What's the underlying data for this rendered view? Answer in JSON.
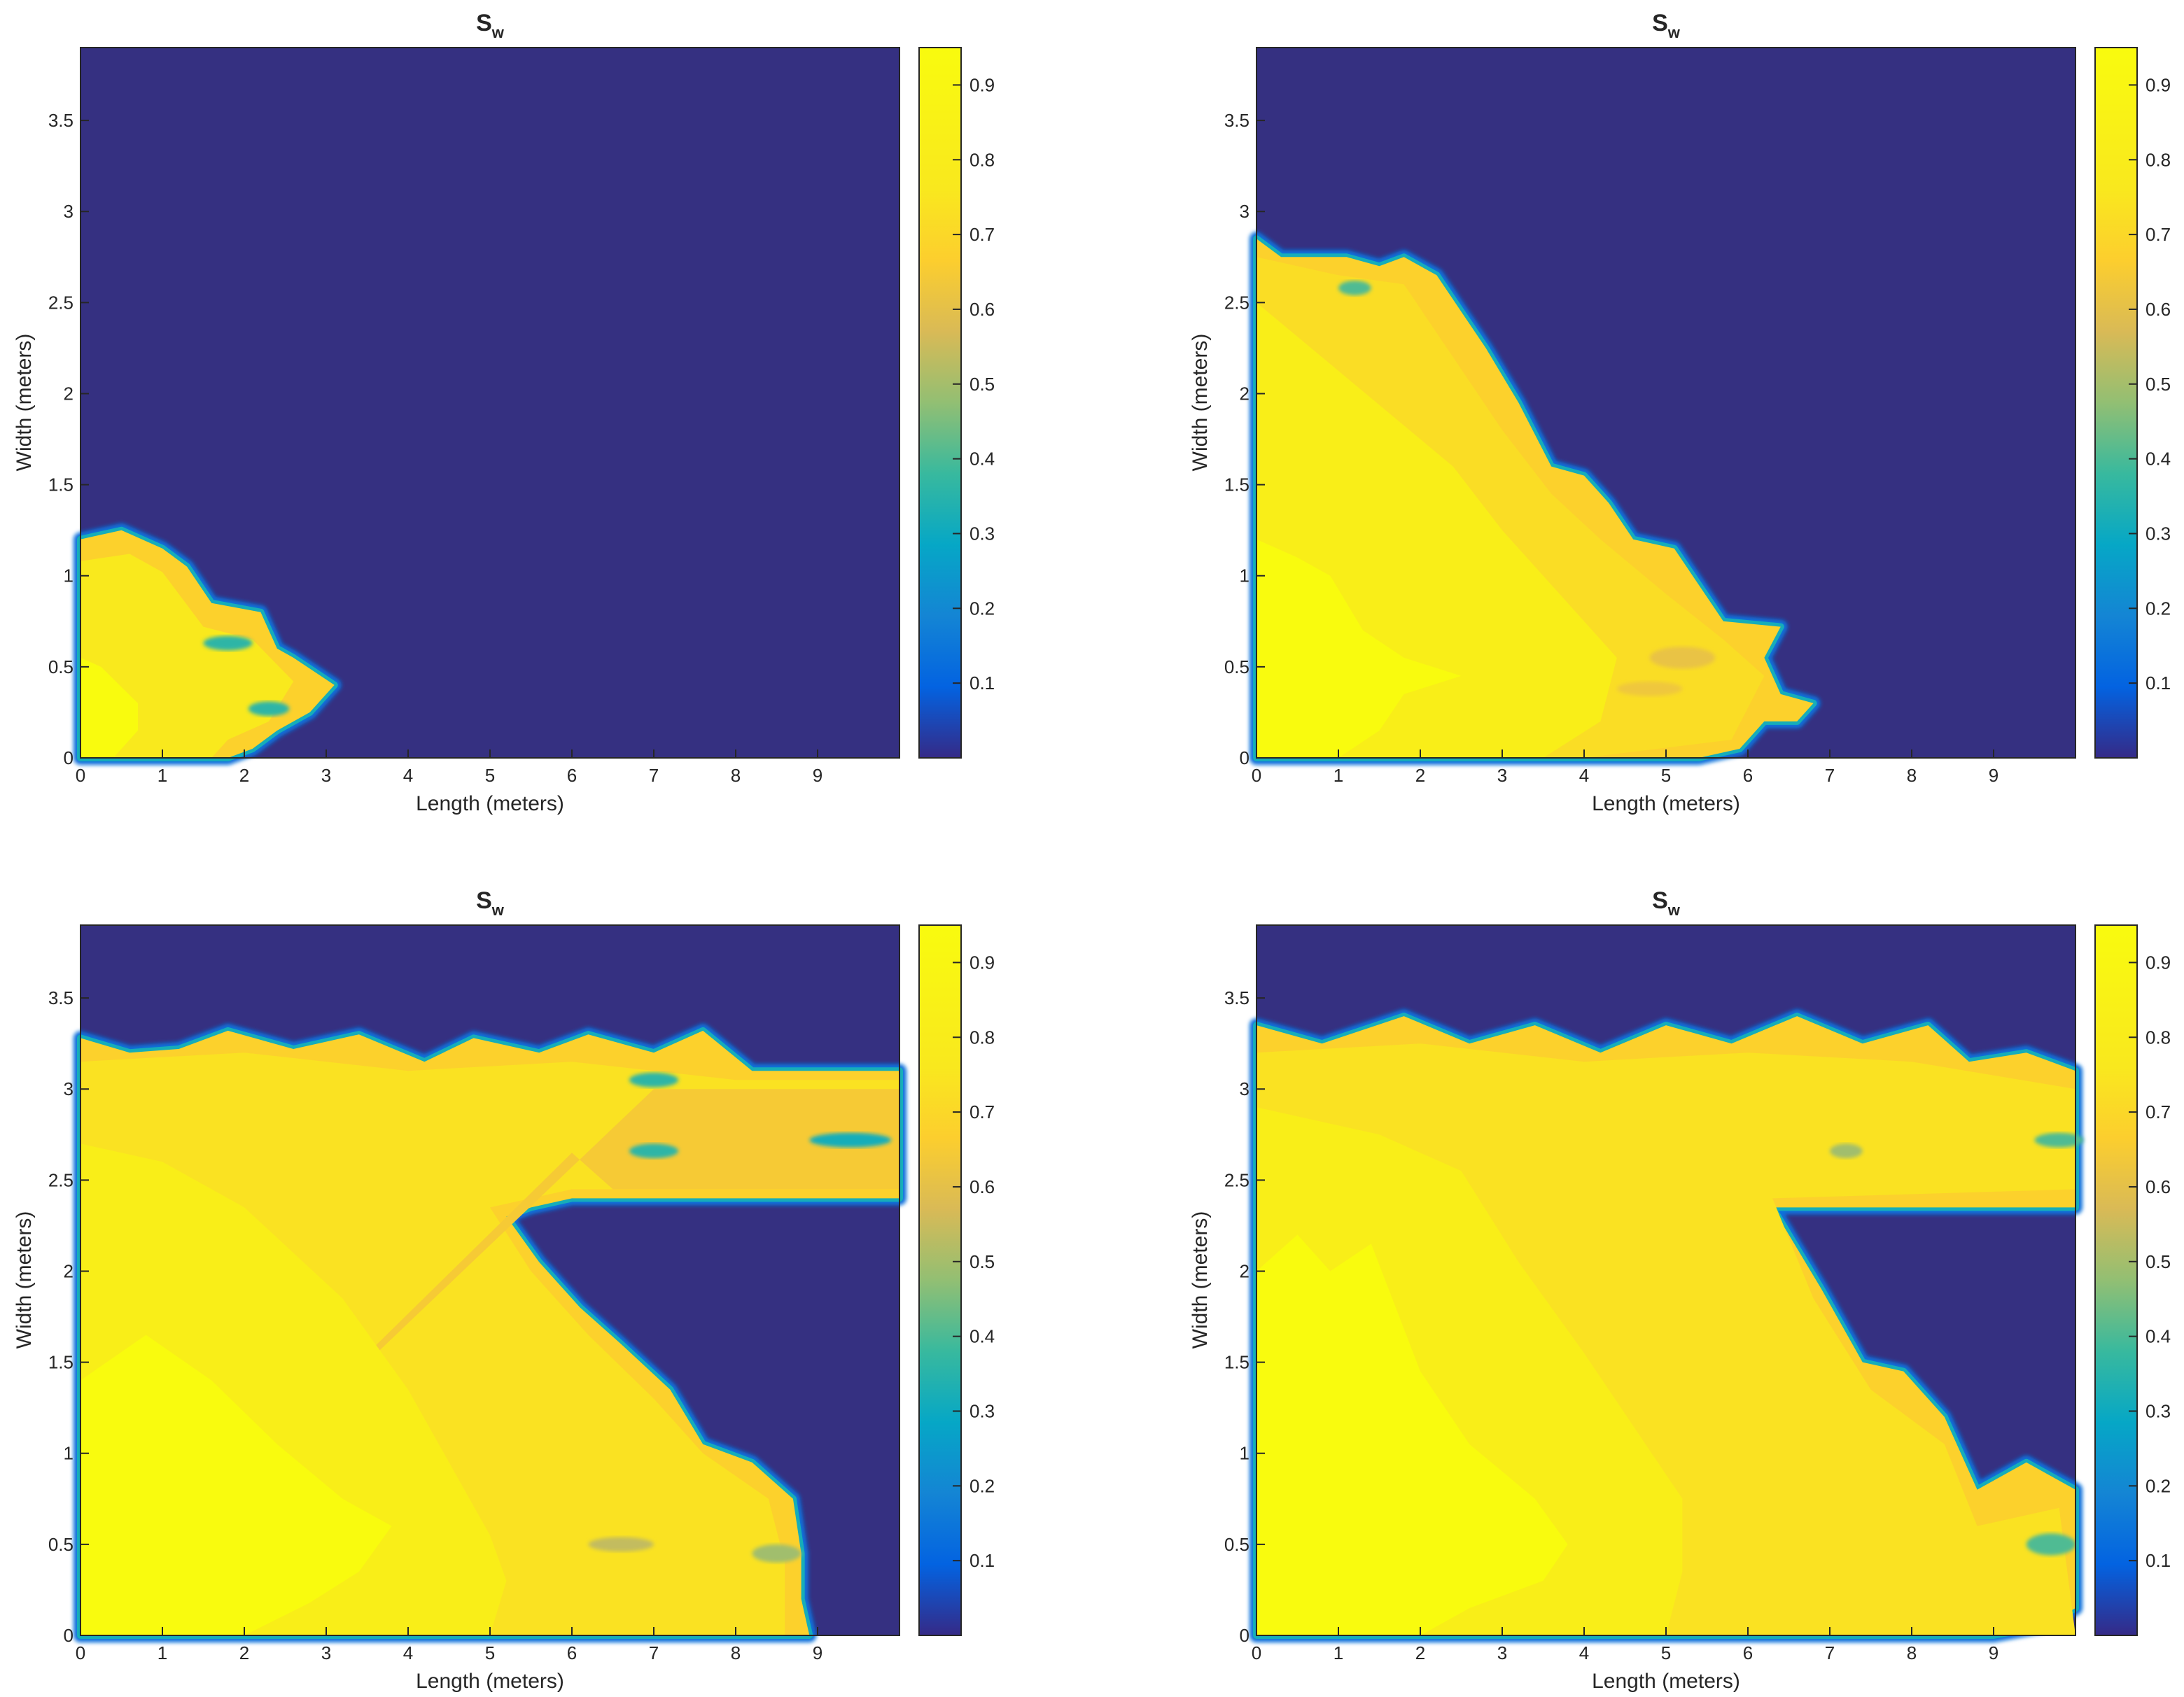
{
  "figure": {
    "panels": 4,
    "layout": "2x2 grid",
    "colormap": "parula",
    "background_color": "#353081"
  },
  "chart_data": [
    {
      "type": "heatmap",
      "title": "S",
      "title_subscript": "w",
      "xlabel": "Length (meters)",
      "ylabel": "Width (meters)",
      "xlim": [
        0,
        10
      ],
      "ylim": [
        0,
        3.9
      ],
      "x_ticks": [
        "0",
        "1",
        "2",
        "3",
        "4",
        "5",
        "6",
        "7",
        "8",
        "9"
      ],
      "y_ticks": [
        "0",
        "0.5",
        "1",
        "1.5",
        "2",
        "2.5",
        "3",
        "3.5"
      ],
      "colorbar": {
        "min": 0,
        "max": 0.95,
        "ticks": [
          "0.1",
          "0.2",
          "0.3",
          "0.4",
          "0.5",
          "0.6",
          "0.7",
          "0.8",
          "0.9"
        ]
      },
      "front": [
        [
          0,
          1.2
        ],
        [
          0.5,
          1.25
        ],
        [
          1.0,
          1.15
        ],
        [
          1.3,
          1.05
        ],
        [
          1.6,
          0.85
        ],
        [
          2.2,
          0.8
        ],
        [
          2.4,
          0.6
        ],
        [
          2.6,
          0.55
        ],
        [
          3.1,
          0.4
        ],
        [
          2.8,
          0.25
        ],
        [
          2.4,
          0.15
        ],
        [
          2.1,
          0.05
        ],
        [
          1.8,
          0
        ]
      ],
      "regions": [
        {
          "level": 0.85,
          "points": [
            [
              0,
              1.08
            ],
            [
              0.6,
              1.12
            ],
            [
              1.0,
              1.02
            ],
            [
              1.5,
              0.72
            ],
            [
              2.1,
              0.65
            ],
            [
              2.6,
              0.42
            ],
            [
              2.3,
              0.2
            ],
            [
              1.8,
              0.1
            ],
            [
              1.6,
              0
            ]
          ]
        },
        {
          "level": 0.95,
          "points": [
            [
              0,
              0.55
            ],
            [
              0.25,
              0.5
            ],
            [
              0.7,
              0.3
            ],
            [
              0.7,
              0.15
            ],
            [
              0.4,
              0
            ]
          ]
        }
      ],
      "spots": [
        {
          "x": 1.8,
          "y": 0.63,
          "rx": 0.3,
          "ry": 0.04,
          "level": 0.4
        },
        {
          "x": 2.3,
          "y": 0.27,
          "rx": 0.25,
          "ry": 0.04,
          "level": 0.4
        }
      ]
    },
    {
      "type": "heatmap",
      "title": "S",
      "title_subscript": "w",
      "xlabel": "Length (meters)",
      "ylabel": "Width (meters)",
      "xlim": [
        0,
        10
      ],
      "ylim": [
        0,
        3.9
      ],
      "x_ticks": [
        "0",
        "1",
        "2",
        "3",
        "4",
        "5",
        "6",
        "7",
        "8",
        "9"
      ],
      "y_ticks": [
        "0",
        "0.5",
        "1",
        "1.5",
        "2",
        "2.5",
        "3",
        "3.5"
      ],
      "colorbar": {
        "min": 0,
        "max": 0.95,
        "ticks": [
          "0.1",
          "0.2",
          "0.3",
          "0.4",
          "0.5",
          "0.6",
          "0.7",
          "0.8",
          "0.9"
        ]
      },
      "front": [
        [
          0,
          2.85
        ],
        [
          0.3,
          2.75
        ],
        [
          1.1,
          2.75
        ],
        [
          1.5,
          2.7
        ],
        [
          1.8,
          2.75
        ],
        [
          2.2,
          2.65
        ],
        [
          2.5,
          2.45
        ],
        [
          2.8,
          2.25
        ],
        [
          3.2,
          1.95
        ],
        [
          3.6,
          1.6
        ],
        [
          4.0,
          1.55
        ],
        [
          4.3,
          1.4
        ],
        [
          4.6,
          1.2
        ],
        [
          5.1,
          1.15
        ],
        [
          5.4,
          0.95
        ],
        [
          5.7,
          0.75
        ],
        [
          6.4,
          0.72
        ],
        [
          6.2,
          0.55
        ],
        [
          6.4,
          0.35
        ],
        [
          6.8,
          0.3
        ],
        [
          6.6,
          0.2
        ],
        [
          6.2,
          0.2
        ],
        [
          5.9,
          0.05
        ],
        [
          5.4,
          0
        ],
        [
          4.0,
          0
        ]
      ],
      "regions": [
        {
          "level": 0.8,
          "points": [
            [
              0,
              2.75
            ],
            [
              1.0,
              2.65
            ],
            [
              1.8,
              2.6
            ],
            [
              2.4,
              2.2
            ],
            [
              3.0,
              1.8
            ],
            [
              3.6,
              1.45
            ],
            [
              4.2,
              1.2
            ],
            [
              5.0,
              0.9
            ],
            [
              5.7,
              0.65
            ],
            [
              6.2,
              0.45
            ],
            [
              5.8,
              0.1
            ],
            [
              4.0,
              0
            ]
          ]
        },
        {
          "level": 0.88,
          "points": [
            [
              0,
              2.5
            ],
            [
              0.8,
              2.2
            ],
            [
              1.6,
              1.9
            ],
            [
              2.4,
              1.6
            ],
            [
              3.0,
              1.25
            ],
            [
              3.8,
              0.85
            ],
            [
              4.4,
              0.55
            ],
            [
              4.2,
              0.2
            ],
            [
              3.5,
              0
            ]
          ]
        },
        {
          "level": 0.95,
          "points": [
            [
              0,
              1.2
            ],
            [
              0.5,
              1.1
            ],
            [
              0.9,
              1.0
            ],
            [
              1.3,
              0.7
            ],
            [
              1.8,
              0.55
            ],
            [
              2.5,
              0.45
            ],
            [
              1.8,
              0.35
            ],
            [
              1.5,
              0.15
            ],
            [
              1.0,
              0
            ]
          ]
        }
      ],
      "spots": [
        {
          "x": 5.2,
          "y": 0.55,
          "rx": 0.4,
          "ry": 0.06,
          "level": 0.68
        },
        {
          "x": 4.8,
          "y": 0.38,
          "rx": 0.4,
          "ry": 0.04,
          "level": 0.7
        },
        {
          "x": 1.2,
          "y": 2.58,
          "rx": 0.2,
          "ry": 0.04,
          "level": 0.45
        }
      ]
    },
    {
      "type": "heatmap",
      "title": "S",
      "title_subscript": "w",
      "xlabel": "Length (meters)",
      "ylabel": "Width (meters)",
      "xlim": [
        0,
        10
      ],
      "ylim": [
        0,
        3.9
      ],
      "x_ticks": [
        "0",
        "1",
        "2",
        "3",
        "4",
        "5",
        "6",
        "7",
        "8",
        "9"
      ],
      "y_ticks": [
        "0",
        "0.5",
        "1",
        "1.5",
        "2",
        "2.5",
        "3",
        "3.5"
      ],
      "colorbar": {
        "min": 0,
        "max": 0.95,
        "ticks": [
          "0.1",
          "0.2",
          "0.3",
          "0.4",
          "0.5",
          "0.6",
          "0.7",
          "0.8",
          "0.9"
        ]
      },
      "front": [
        [
          0,
          3.28
        ],
        [
          0.6,
          3.2
        ],
        [
          1.2,
          3.22
        ],
        [
          1.8,
          3.32
        ],
        [
          2.6,
          3.22
        ],
        [
          3.4,
          3.3
        ],
        [
          4.2,
          3.15
        ],
        [
          4.8,
          3.28
        ],
        [
          5.6,
          3.2
        ],
        [
          6.2,
          3.3
        ],
        [
          7.0,
          3.2
        ],
        [
          7.6,
          3.32
        ],
        [
          8.2,
          3.1
        ],
        [
          10,
          3.1
        ],
        [
          10,
          2.4
        ],
        [
          6.0,
          2.4
        ],
        [
          5.5,
          2.35
        ],
        [
          5.2,
          2.3
        ],
        [
          5.6,
          2.05
        ],
        [
          6.1,
          1.8
        ],
        [
          6.6,
          1.6
        ],
        [
          7.2,
          1.35
        ],
        [
          7.6,
          1.05
        ],
        [
          8.2,
          0.95
        ],
        [
          8.7,
          0.75
        ],
        [
          8.8,
          0.45
        ],
        [
          8.8,
          0.2
        ],
        [
          8.9,
          0
        ]
      ],
      "regions": [
        {
          "level": 0.82,
          "points": [
            [
              0,
              3.15
            ],
            [
              2.0,
              3.2
            ],
            [
              4.0,
              3.1
            ],
            [
              6.0,
              3.15
            ],
            [
              8.0,
              3.05
            ],
            [
              10,
              3.05
            ],
            [
              10,
              2.45
            ],
            [
              6.0,
              2.45
            ],
            [
              5.0,
              2.35
            ],
            [
              5.5,
              2.0
            ],
            [
              6.2,
              1.65
            ],
            [
              7.0,
              1.3
            ],
            [
              7.6,
              1.0
            ],
            [
              8.4,
              0.75
            ],
            [
              8.6,
              0.4
            ],
            [
              8.6,
              0
            ]
          ]
        },
        {
          "level": 0.72,
          "points": [
            [
              7.0,
              3.0
            ],
            [
              10,
              3.0
            ],
            [
              10,
              2.45
            ],
            [
              6.5,
              2.45
            ],
            [
              6.0,
              2.65
            ]
          ]
        },
        {
          "level": 0.88,
          "points": [
            [
              0,
              2.7
            ],
            [
              1.0,
              2.6
            ],
            [
              2.0,
              2.35
            ],
            [
              3.2,
              1.85
            ],
            [
              4.0,
              1.35
            ],
            [
              4.5,
              0.95
            ],
            [
              5.0,
              0.55
            ],
            [
              5.2,
              0.3
            ],
            [
              5.0,
              0
            ]
          ]
        },
        {
          "level": 0.95,
          "points": [
            [
              0,
              1.4
            ],
            [
              0.8,
              1.65
            ],
            [
              1.6,
              1.4
            ],
            [
              2.4,
              1.05
            ],
            [
              3.2,
              0.75
            ],
            [
              3.8,
              0.6
            ],
            [
              3.4,
              0.35
            ],
            [
              2.8,
              0.18
            ],
            [
              2.0,
              0
            ]
          ]
        }
      ],
      "spots": [
        {
          "x": 7.0,
          "y": 3.05,
          "rx": 0.3,
          "ry": 0.04,
          "level": 0.4
        },
        {
          "x": 7.0,
          "y": 2.66,
          "rx": 0.3,
          "ry": 0.04,
          "level": 0.4
        },
        {
          "x": 9.4,
          "y": 2.72,
          "rx": 0.5,
          "ry": 0.04,
          "level": 0.35
        },
        {
          "x": 6.6,
          "y": 0.5,
          "rx": 0.4,
          "ry": 0.04,
          "level": 0.6
        },
        {
          "x": 8.5,
          "y": 0.45,
          "rx": 0.3,
          "ry": 0.05,
          "level": 0.55
        }
      ]
    },
    {
      "type": "heatmap",
      "title": "S",
      "title_subscript": "w",
      "xlabel": "Length (meters)",
      "ylabel": "Width (meters)",
      "xlim": [
        0,
        10
      ],
      "ylim": [
        0,
        3.9
      ],
      "x_ticks": [
        "0",
        "1",
        "2",
        "3",
        "4",
        "5",
        "6",
        "7",
        "8",
        "9"
      ],
      "y_ticks": [
        "0",
        "0.5",
        "1",
        "1.5",
        "2",
        "2.5",
        "3",
        "3.5"
      ],
      "colorbar": {
        "min": 0,
        "max": 0.95,
        "ticks": [
          "0.1",
          "0.2",
          "0.3",
          "0.4",
          "0.5",
          "0.6",
          "0.7",
          "0.8",
          "0.9"
        ]
      },
      "front": [
        [
          0,
          3.35
        ],
        [
          0.8,
          3.25
        ],
        [
          1.8,
          3.4
        ],
        [
          2.6,
          3.25
        ],
        [
          3.4,
          3.35
        ],
        [
          4.2,
          3.2
        ],
        [
          5.0,
          3.35
        ],
        [
          5.8,
          3.25
        ],
        [
          6.6,
          3.4
        ],
        [
          7.4,
          3.25
        ],
        [
          8.2,
          3.35
        ],
        [
          8.7,
          3.15
        ],
        [
          9.4,
          3.2
        ],
        [
          10,
          3.1
        ],
        [
          10,
          2.35
        ],
        [
          7.0,
          2.35
        ],
        [
          6.3,
          2.35
        ],
        [
          6.9,
          1.9
        ],
        [
          7.4,
          1.5
        ],
        [
          7.9,
          1.45
        ],
        [
          8.4,
          1.2
        ],
        [
          8.8,
          0.8
        ],
        [
          9.4,
          0.95
        ],
        [
          10,
          0.8
        ],
        [
          10,
          0.15
        ],
        [
          9.6,
          0.05
        ],
        [
          9.0,
          0
        ]
      ],
      "regions": [
        {
          "level": 0.82,
          "points": [
            [
              0,
              3.2
            ],
            [
              2.0,
              3.25
            ],
            [
              4.0,
              3.15
            ],
            [
              6.0,
              3.2
            ],
            [
              8.0,
              3.15
            ],
            [
              10,
              3.0
            ],
            [
              10,
              2.45
            ],
            [
              6.3,
              2.4
            ],
            [
              6.8,
              1.85
            ],
            [
              7.5,
              1.35
            ],
            [
              8.4,
              1.05
            ],
            [
              8.8,
              0.6
            ],
            [
              9.8,
              0.7
            ],
            [
              10,
              0
            ],
            [
              9.0,
              0
            ]
          ]
        },
        {
          "level": 0.88,
          "points": [
            [
              0,
              2.9
            ],
            [
              1.5,
              2.75
            ],
            [
              2.5,
              2.55
            ],
            [
              3.2,
              2.05
            ],
            [
              4.0,
              1.55
            ],
            [
              4.6,
              1.15
            ],
            [
              5.2,
              0.75
            ],
            [
              5.2,
              0.35
            ],
            [
              5.0,
              0
            ]
          ]
        },
        {
          "level": 0.95,
          "points": [
            [
              0,
              2.0
            ],
            [
              0.5,
              2.2
            ],
            [
              0.9,
              2.0
            ],
            [
              1.4,
              2.15
            ],
            [
              2.0,
              1.45
            ],
            [
              2.6,
              1.05
            ],
            [
              3.4,
              0.75
            ],
            [
              3.8,
              0.5
            ],
            [
              3.5,
              0.3
            ],
            [
              2.6,
              0.15
            ],
            [
              2.0,
              0
            ]
          ]
        }
      ],
      "spots": [
        {
          "x": 9.8,
          "y": 2.72,
          "rx": 0.3,
          "ry": 0.04,
          "level": 0.45
        },
        {
          "x": 9.7,
          "y": 0.5,
          "rx": 0.3,
          "ry": 0.06,
          "level": 0.45
        },
        {
          "x": 7.2,
          "y": 2.66,
          "rx": 0.2,
          "ry": 0.04,
          "level": 0.55
        }
      ]
    }
  ]
}
